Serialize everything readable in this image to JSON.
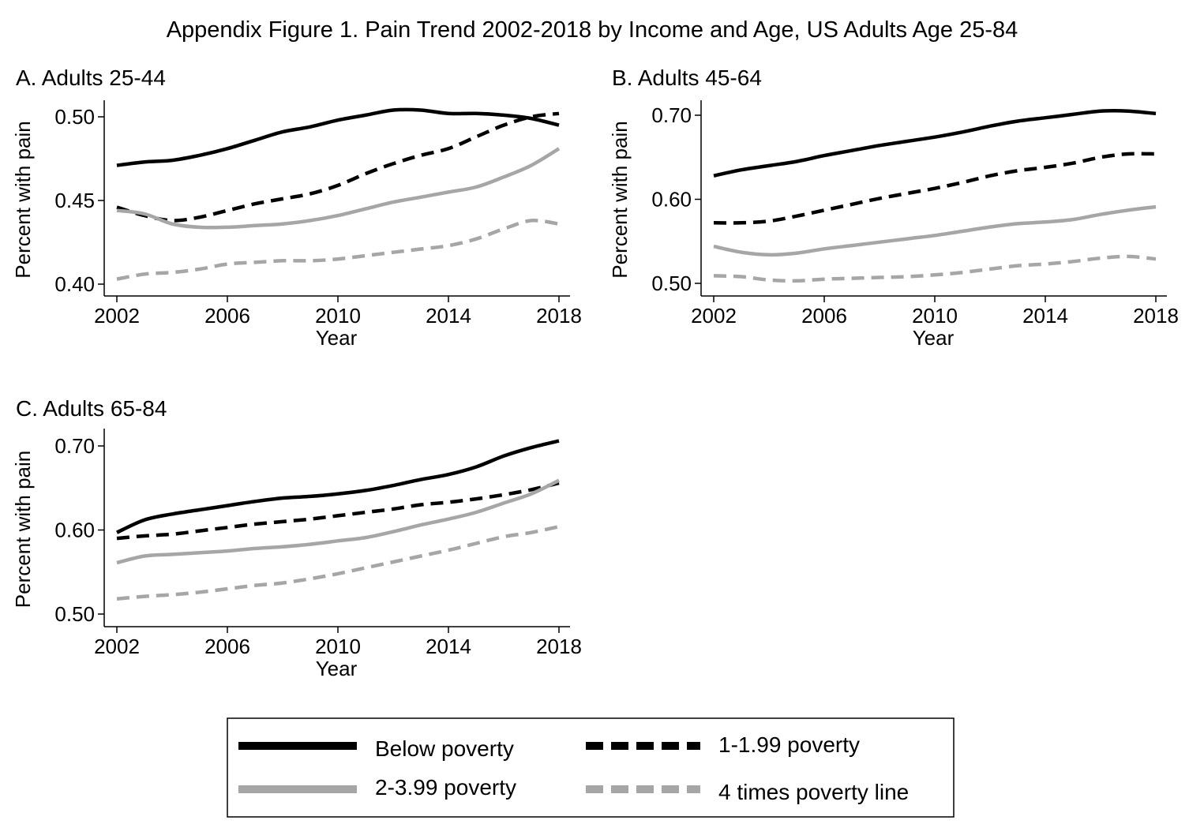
{
  "figure": {
    "title": "Appendix Figure 1.  Pain Trend 2002-2018 by Income and Age, US Adults Age 25-84"
  },
  "legend": {
    "placement": "bottom-center",
    "entries": [
      {
        "name": "Below poverty",
        "color": "#000000",
        "style": "solid"
      },
      {
        "name": "1-1.99 poverty",
        "color": "#000000",
        "style": "dashed"
      },
      {
        "name": "2-3.99 poverty",
        "color": "#a6a6a6",
        "style": "solid"
      },
      {
        "name": "4 times poverty line",
        "color": "#a6a6a6",
        "style": "dashed"
      }
    ]
  },
  "chart_data": [
    {
      "type": "line",
      "title": "A. Adults 25-44",
      "xlabel": "Year",
      "ylabel": "Percent with pain",
      "xlim": [
        2002,
        2018
      ],
      "ylim": [
        0.4,
        0.5
      ],
      "xticks": [
        "2002",
        "2006",
        "2010",
        "2014",
        "2018"
      ],
      "yticks": [
        "0.50",
        "0.45",
        "0.40"
      ],
      "grid": false,
      "x": [
        2002,
        2003,
        2004,
        2005,
        2006,
        2007,
        2008,
        2009,
        2010,
        2011,
        2012,
        2013,
        2014,
        2015,
        2016,
        2017,
        2018
      ],
      "series": [
        {
          "name": "Below poverty",
          "color": "#000000",
          "style": "solid",
          "values": [
            0.471,
            0.473,
            0.474,
            0.477,
            0.481,
            0.486,
            0.491,
            0.494,
            0.498,
            0.501,
            0.504,
            0.504,
            0.502,
            0.502,
            0.501,
            0.499,
            0.495
          ]
        },
        {
          "name": "1-1.99 poverty",
          "color": "#000000",
          "style": "dashed",
          "values": [
            0.446,
            0.441,
            0.438,
            0.44,
            0.444,
            0.448,
            0.451,
            0.454,
            0.459,
            0.466,
            0.472,
            0.477,
            0.481,
            0.488,
            0.495,
            0.5,
            0.502
          ]
        },
        {
          "name": "2-3.99 poverty",
          "color": "#a6a6a6",
          "style": "solid",
          "values": [
            0.444,
            0.442,
            0.436,
            0.434,
            0.434,
            0.435,
            0.436,
            0.438,
            0.441,
            0.445,
            0.449,
            0.452,
            0.455,
            0.458,
            0.464,
            0.471,
            0.481
          ]
        },
        {
          "name": "4 times poverty line",
          "color": "#a6a6a6",
          "style": "dashed",
          "values": [
            0.403,
            0.406,
            0.407,
            0.409,
            0.412,
            0.413,
            0.414,
            0.414,
            0.415,
            0.417,
            0.419,
            0.421,
            0.423,
            0.427,
            0.433,
            0.438,
            0.436
          ]
        }
      ]
    },
    {
      "type": "line",
      "title": "B. Adults 45-64",
      "xlabel": "Year",
      "ylabel": "Percent with pain",
      "xlim": [
        2002,
        2018
      ],
      "ylim": [
        0.5,
        0.7
      ],
      "xticks": [
        "2002",
        "2006",
        "2010",
        "2014",
        "2018"
      ],
      "yticks": [
        "0.70",
        "0.60",
        "0.50"
      ],
      "grid": false,
      "x": [
        2002,
        2003,
        2004,
        2005,
        2006,
        2007,
        2008,
        2009,
        2010,
        2011,
        2012,
        2013,
        2014,
        2015,
        2016,
        2017,
        2018
      ],
      "series": [
        {
          "name": "Below poverty",
          "color": "#000000",
          "style": "solid",
          "values": [
            0.628,
            0.635,
            0.64,
            0.645,
            0.652,
            0.658,
            0.664,
            0.669,
            0.674,
            0.68,
            0.687,
            0.693,
            0.697,
            0.701,
            0.705,
            0.705,
            0.702
          ]
        },
        {
          "name": "1-1.99 poverty",
          "color": "#000000",
          "style": "dashed",
          "values": [
            0.572,
            0.572,
            0.574,
            0.58,
            0.587,
            0.594,
            0.601,
            0.607,
            0.613,
            0.62,
            0.628,
            0.634,
            0.638,
            0.643,
            0.65,
            0.654,
            0.654
          ]
        },
        {
          "name": "2-3.99 poverty",
          "color": "#a6a6a6",
          "style": "solid",
          "values": [
            0.544,
            0.537,
            0.534,
            0.536,
            0.541,
            0.545,
            0.549,
            0.553,
            0.557,
            0.562,
            0.567,
            0.571,
            0.573,
            0.576,
            0.582,
            0.587,
            0.591
          ]
        },
        {
          "name": "4 times poverty line",
          "color": "#a6a6a6",
          "style": "dashed",
          "values": [
            0.509,
            0.508,
            0.504,
            0.503,
            0.505,
            0.506,
            0.507,
            0.508,
            0.51,
            0.513,
            0.517,
            0.521,
            0.523,
            0.526,
            0.53,
            0.532,
            0.529
          ]
        }
      ]
    },
    {
      "type": "line",
      "title": "C. Adults 65-84",
      "xlabel": "Year",
      "ylabel": "Percent with pain",
      "xlim": [
        2002,
        2018
      ],
      "ylim": [
        0.5,
        0.7
      ],
      "xticks": [
        "2002",
        "2006",
        "2010",
        "2014",
        "2018"
      ],
      "yticks": [
        "0.70",
        "0.60",
        "0.50"
      ],
      "grid": false,
      "x": [
        2002,
        2003,
        2004,
        2005,
        2006,
        2007,
        2008,
        2009,
        2010,
        2011,
        2012,
        2013,
        2014,
        2015,
        2016,
        2017,
        2018
      ],
      "series": [
        {
          "name": "Below poverty",
          "color": "#000000",
          "style": "solid",
          "values": [
            0.597,
            0.612,
            0.619,
            0.624,
            0.629,
            0.634,
            0.638,
            0.64,
            0.643,
            0.647,
            0.653,
            0.66,
            0.666,
            0.675,
            0.688,
            0.698,
            0.706
          ]
        },
        {
          "name": "1-1.99 poverty",
          "color": "#000000",
          "style": "dashed",
          "values": [
            0.59,
            0.593,
            0.595,
            0.599,
            0.603,
            0.607,
            0.61,
            0.613,
            0.617,
            0.621,
            0.625,
            0.63,
            0.633,
            0.637,
            0.642,
            0.648,
            0.656
          ]
        },
        {
          "name": "2-3.99 poverty",
          "color": "#a6a6a6",
          "style": "solid",
          "values": [
            0.561,
            0.569,
            0.571,
            0.573,
            0.575,
            0.578,
            0.58,
            0.583,
            0.587,
            0.591,
            0.598,
            0.606,
            0.613,
            0.621,
            0.632,
            0.643,
            0.659
          ]
        },
        {
          "name": "4 times poverty line",
          "color": "#a6a6a6",
          "style": "dashed",
          "values": [
            0.518,
            0.521,
            0.523,
            0.526,
            0.53,
            0.534,
            0.537,
            0.542,
            0.548,
            0.555,
            0.562,
            0.569,
            0.576,
            0.584,
            0.592,
            0.597,
            0.604
          ]
        }
      ]
    }
  ]
}
